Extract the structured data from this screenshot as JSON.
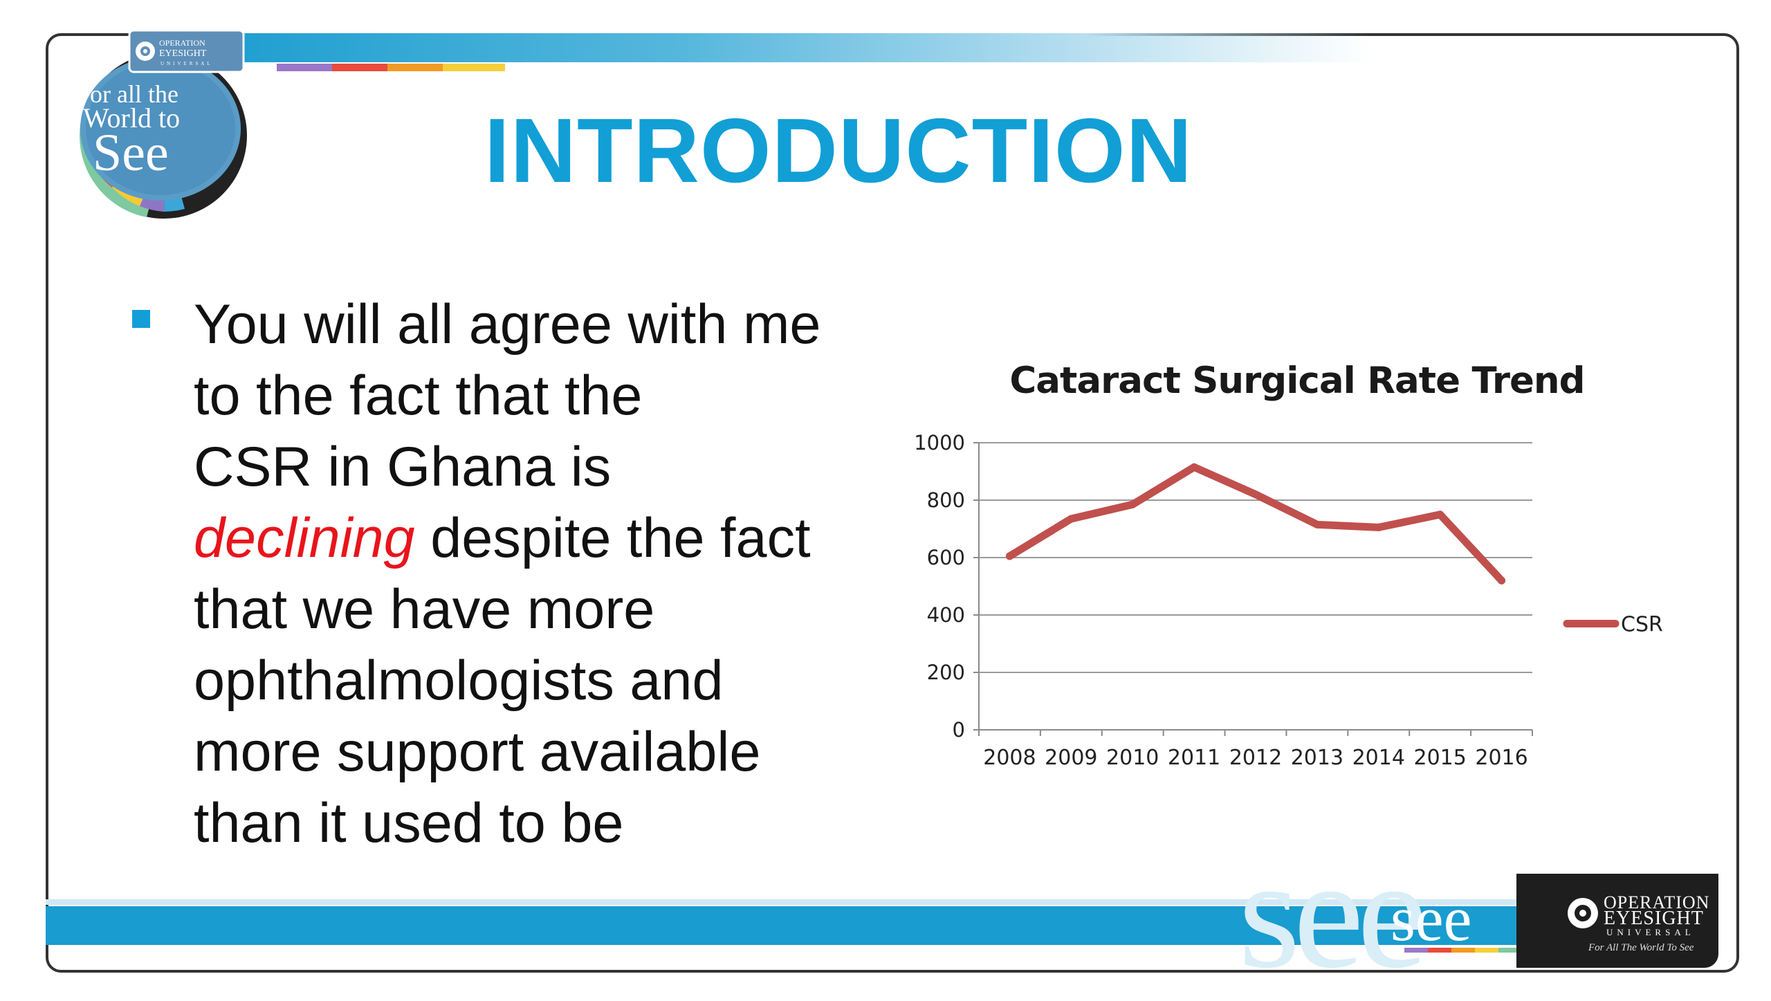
{
  "slide": {
    "title": "INTRODUCTION",
    "bullet": {
      "line1": "You will all agree with me",
      "line2": "to the fact that the",
      "line3": "CSR in Ghana is",
      "emphasis": "declining",
      "line4_rest": " despite the fact",
      "line5": "that we have more",
      "line6": "ophthalmologists and",
      "line7": "more support available",
      "line8": "than it used to be"
    }
  },
  "logo_top_left": {
    "org_line1": "OPERATION",
    "org_line2": "EYESIGHT",
    "org_line3": "UNIVERSAL",
    "slogan_line1": "For all the",
    "slogan_line2": "World to",
    "slogan_line3": "See",
    "icon": "eye-logo-icon"
  },
  "footer": {
    "see_wordmark": "see",
    "brand_line1": "OPERATION",
    "brand_line2": "EYESIGHT",
    "brand_line3": "UNIVERSAL",
    "brand_tagline": "For All The World To See",
    "icon": "eye-logo-icon"
  },
  "colors": {
    "title": "#119fd6",
    "emphasis": "#e8141b",
    "band": "#199ccf",
    "line": "#c0504d"
  },
  "chart_data": {
    "type": "line",
    "title": "Cataract Surgical Rate Trend",
    "x": [
      "2008",
      "2009",
      "2010",
      "2011",
      "2012",
      "2013",
      "2014",
      "2015",
      "2016"
    ],
    "series": [
      {
        "name": "CSR",
        "values": [
          605,
          735,
          785,
          915,
          820,
          715,
          705,
          750,
          520
        ],
        "color": "#c0504d"
      }
    ],
    "ylim": [
      0,
      1000
    ],
    "yticks": [
      0,
      200,
      400,
      600,
      800,
      1000
    ],
    "grid": true,
    "legend": "right"
  }
}
